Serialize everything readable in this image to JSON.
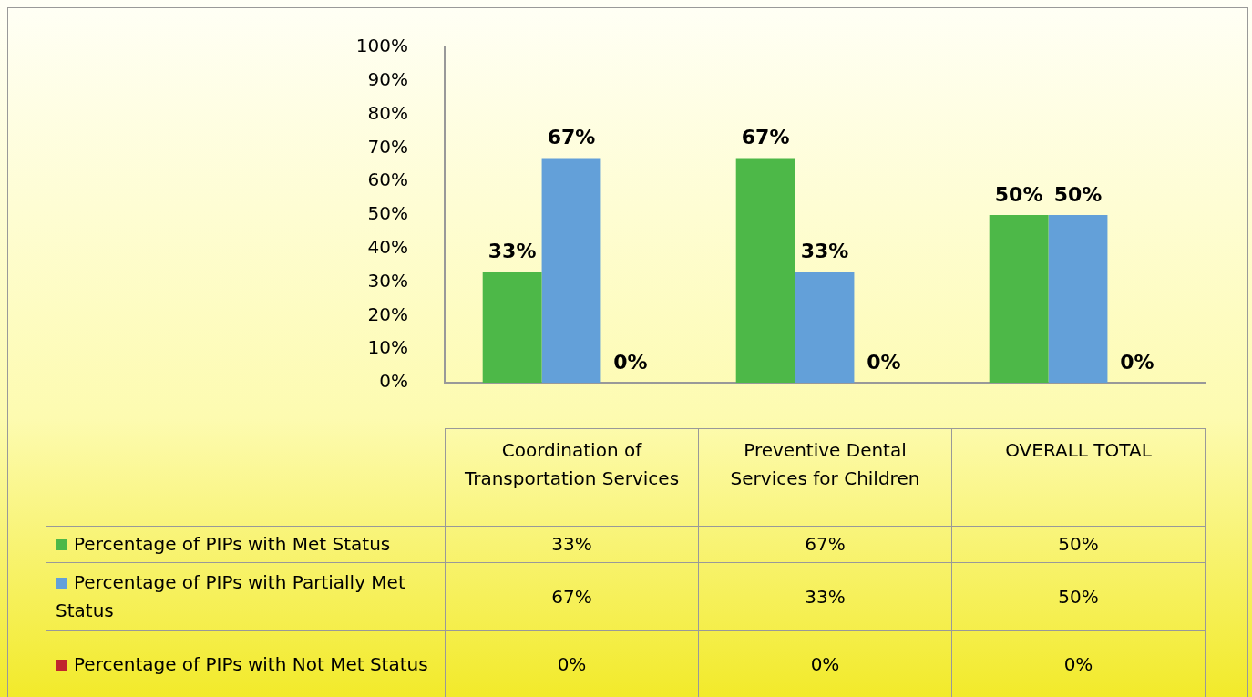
{
  "chart_data": {
    "type": "bar",
    "categories": [
      "Coordination of Transportation Services",
      "Preventive Dental Services for Children",
      "OVERALL TOTAL"
    ],
    "series": [
      {
        "name": "Percentage of PIPs with Met Status",
        "color": "#4db848",
        "values": [
          33,
          67,
          50
        ]
      },
      {
        "name": "Percentage of PIPs with Partially Met Status",
        "color": "#63a0d9",
        "values": [
          67,
          33,
          50
        ]
      },
      {
        "name": "Percentage of PIPs with Not Met Status",
        "color": "#c0272d",
        "values": [
          0,
          0,
          0
        ]
      }
    ],
    "ylim": [
      0,
      100
    ],
    "yticks": [
      {
        "value": 0,
        "label": "0%"
      },
      {
        "value": 10,
        "label": "10%"
      },
      {
        "value": 20,
        "label": "20%"
      },
      {
        "value": 30,
        "label": "30%"
      },
      {
        "value": 40,
        "label": "40%"
      },
      {
        "value": 50,
        "label": "50%"
      },
      {
        "value": 60,
        "label": "60%"
      },
      {
        "value": 70,
        "label": "70%"
      },
      {
        "value": 80,
        "label": "80%"
      },
      {
        "value": 90,
        "label": "90%"
      },
      {
        "value": 100,
        "label": "100%"
      }
    ],
    "value_labels": [
      [
        "33%",
        "67%",
        "50%"
      ],
      [
        "67%",
        "33%",
        "50%"
      ],
      [
        "0%",
        "0%",
        "0%"
      ]
    ],
    "grid": false,
    "legend": "bottom"
  }
}
